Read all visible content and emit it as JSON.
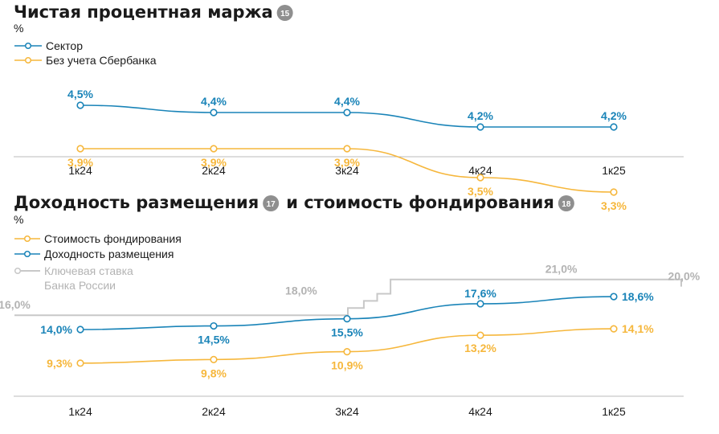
{
  "colors": {
    "blue": "#1a84b8",
    "orange": "#f6b73c",
    "grey": "#c8c8c8",
    "badge": "#8f8f8f",
    "axis": "#bbbbbb"
  },
  "chart_data": [
    {
      "type": "line",
      "title": "Чистая процентная маржа",
      "title_badge": "15",
      "unit": "%",
      "categories": [
        "1к24",
        "2к24",
        "3к24",
        "4к24",
        "1к25"
      ],
      "ylim": [
        2.7,
        5.4
      ],
      "legend": "top-left",
      "grid": false,
      "series": [
        {
          "name": "Сектор",
          "color": "#1a84b8",
          "values": [
            4.5,
            4.4,
            4.4,
            4.2,
            4.2
          ],
          "labels": [
            "4,5%",
            "4,4%",
            "4,4%",
            "4,2%",
            "4,2%"
          ],
          "label_pos": "above"
        },
        {
          "name": "Без учета Сбербанка",
          "color": "#f6b73c",
          "values": [
            3.9,
            3.9,
            3.9,
            3.5,
            3.3
          ],
          "labels": [
            "3,9%",
            "3,9%",
            "3,9%",
            "3,5%",
            "3,3%"
          ],
          "label_pos": "below"
        }
      ]
    },
    {
      "type": "line",
      "title": "Доходность размещения",
      "title_badge": "17",
      "title_part2": "и стоимость фондирования",
      "title_badge2": "18",
      "unit": "%",
      "categories": [
        "1к24",
        "2к24",
        "3к24",
        "4к24",
        "1к25"
      ],
      "ylim": [
        5,
        24
      ],
      "legend": "top-left",
      "grid": false,
      "series": [
        {
          "name": "Стоимость фондирования",
          "color": "#f6b73c",
          "values": [
            9.3,
            9.8,
            10.9,
            13.2,
            14.1
          ],
          "labels": [
            "9,3%",
            "9,8%",
            "10,9%",
            "13,2%",
            "14,1%"
          ],
          "label_pos": "below"
        },
        {
          "name": "Доходность размещения",
          "color": "#1a84b8",
          "values": [
            14.0,
            14.5,
            15.5,
            17.6,
            18.6
          ],
          "labels": [
            "14,0%",
            "14,5%",
            "15,5%",
            "17,6%",
            "18,6%"
          ],
          "label_pos": "below"
        }
      ],
      "key_rate": {
        "name_line1": "Ключевая ставка",
        "name_line2": "Банка России",
        "color": "#c8c8c8",
        "steps": [
          {
            "from": 0.0,
            "to": 2.5,
            "value": 16.0
          },
          {
            "from": 2.5,
            "to": 2.62,
            "value": 17.0
          },
          {
            "from": 2.62,
            "to": 2.72,
            "value": 18.0
          },
          {
            "from": 2.72,
            "to": 2.82,
            "value": 19.0
          },
          {
            "from": 2.82,
            "to": 5.0,
            "value": 21.0
          },
          {
            "from": 5.0,
            "to": 5.5,
            "value": 20.0
          }
        ],
        "labels": [
          {
            "text": "16,0%",
            "x": -0.35,
            "value": 16.0
          },
          {
            "text": "18,0%",
            "x": 1.8,
            "value": 18.0
          },
          {
            "text": "21,0%",
            "x": 3.75,
            "value": 21.0
          },
          {
            "text": "20,0%",
            "x": 4.55,
            "value": 20.0
          }
        ]
      }
    }
  ]
}
